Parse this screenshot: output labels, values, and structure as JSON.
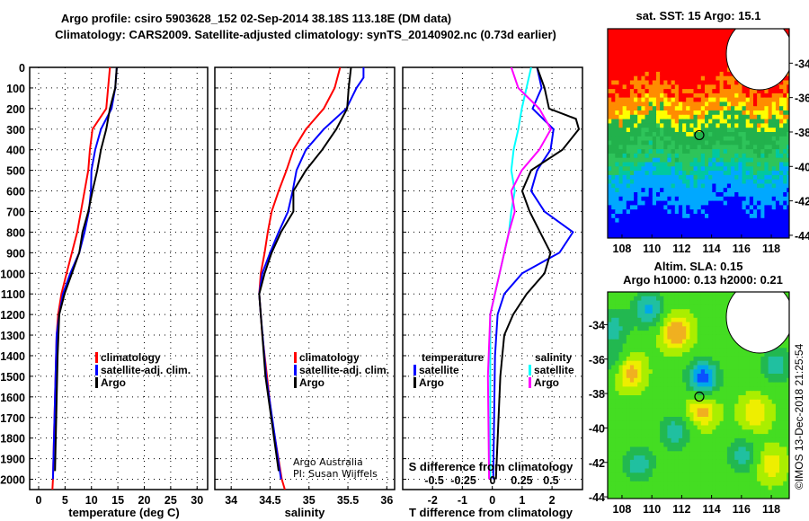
{
  "title_line1": "Argo profile: csiro 5903628_152 02-Sep-2014 38.18S 113.18E (DM data)",
  "title_line2": "Climatology: CARS2009. Satellite-adjusted climatology: synTS_20140902.nc (0.73d earlier)",
  "credit": [
    "Argo Australia",
    "PI: Susan Wijffels"
  ],
  "stamp": "©IMOS 13-Dec-2018 21:25:54",
  "colors": {
    "climatology": "#ff0000",
    "satellite": "#0000ff",
    "argo": "#000000",
    "s_satellite": "#00ffff",
    "s_argo": "#ff00ff"
  },
  "chart_data": [
    {
      "type": "line",
      "name": "temperature",
      "xlabel": "temperature (deg C)",
      "ylabel": "",
      "xlim": [
        -1.7,
        32
      ],
      "ylim": [
        2050,
        0
      ],
      "xticks": [
        0,
        5,
        10,
        15,
        20,
        25,
        30
      ],
      "yticks": [
        0,
        100,
        200,
        300,
        400,
        500,
        600,
        700,
        800,
        900,
        1000,
        1100,
        1200,
        1300,
        1400,
        1500,
        1600,
        1700,
        1800,
        1900,
        2000
      ],
      "grid": true,
      "legend": {
        "placement": "middle-center",
        "entries": [
          "climatology",
          "satellite-adj. clim.",
          "Argo"
        ]
      },
      "series": [
        {
          "name": "climatology",
          "color": "#ff0000",
          "depth": [
            0,
            200,
            300,
            400,
            500,
            600,
            700,
            800,
            900,
            1000,
            1100,
            1200,
            1300,
            1500,
            2000,
            2050
          ],
          "values": [
            13.5,
            12.8,
            10.2,
            9.7,
            9.4,
            8.7,
            8.0,
            7.3,
            6.3,
            5.3,
            4.3,
            3.7,
            3.4,
            3.2,
            2.7,
            2.6
          ]
        },
        {
          "name": "satellite-adj. clim.",
          "color": "#0000ff",
          "depth": [
            0,
            100,
            200,
            300,
            400,
            500,
            600,
            700,
            800,
            900,
            1000,
            1100,
            1200,
            1300,
            1500,
            2000
          ],
          "values": [
            14.8,
            14.5,
            13.8,
            11.8,
            10.7,
            10.0,
            9.9,
            9.5,
            8.7,
            7.7,
            6.0,
            4.6,
            3.9,
            3.4,
            3.2,
            2.7
          ]
        },
        {
          "name": "Argo",
          "color": "#000000",
          "depth": [
            0,
            100,
            200,
            300,
            400,
            500,
            600,
            700,
            800,
            900,
            1000,
            1100,
            1200,
            1400,
            1960
          ],
          "values": [
            14.8,
            14.5,
            13.5,
            12.8,
            11.8,
            11.1,
            10.2,
            9.4,
            8.3,
            7.7,
            6.3,
            4.9,
            3.9,
            3.6,
            3.1
          ]
        }
      ]
    },
    {
      "type": "line",
      "name": "salinity",
      "xlabel": "salinity",
      "xlim": [
        33.79,
        36.1
      ],
      "ylim": [
        2050,
        0
      ],
      "xticks": [
        34,
        34.5,
        35,
        35.5,
        36
      ],
      "grid": true,
      "legend": {
        "placement": "middle-right",
        "entries": [
          "climatology",
          "satellite-adj. clim.",
          "Argo"
        ]
      },
      "series": [
        {
          "name": "climatology",
          "color": "#ff0000",
          "depth": [
            0,
            100,
            200,
            300,
            400,
            500,
            600,
            700,
            800,
            900,
            1000,
            1100,
            1200,
            1300,
            1500,
            1700,
            2000,
            2050
          ],
          "values": [
            35.4,
            35.33,
            35.19,
            34.96,
            34.8,
            34.71,
            34.61,
            34.52,
            34.47,
            34.43,
            34.38,
            34.36,
            34.38,
            34.4,
            34.46,
            34.52,
            34.65,
            34.69
          ]
        },
        {
          "name": "satellite-adj. clim.",
          "color": "#0000ff",
          "depth": [
            0,
            50,
            100,
            200,
            300,
            400,
            500,
            600,
            700,
            800,
            900,
            1000,
            1100,
            1200,
            1500,
            2000
          ],
          "values": [
            35.7,
            35.7,
            35.61,
            35.48,
            35.19,
            34.96,
            34.84,
            34.79,
            34.73,
            34.61,
            34.5,
            34.4,
            34.36,
            34.38,
            34.45,
            34.64
          ]
        },
        {
          "name": "Argo",
          "color": "#000000",
          "depth": [
            0,
            100,
            200,
            300,
            400,
            500,
            600,
            700,
            800,
            900,
            1000,
            1100,
            1200,
            1500,
            1960
          ],
          "values": [
            35.54,
            35.51,
            35.49,
            35.35,
            35.17,
            34.96,
            34.8,
            34.8,
            34.64,
            34.52,
            34.43,
            34.36,
            34.38,
            34.44,
            34.61
          ]
        }
      ]
    },
    {
      "type": "line",
      "name": "differences",
      "xlabel": "T difference from climatology",
      "x2label": "S difference from climatology",
      "xlim": [
        -3,
        3.02
      ],
      "x2lim": [
        -0.77,
        0.77
      ],
      "ylim": [
        2050,
        0
      ],
      "xticks": [
        -2,
        -1,
        0,
        1,
        2
      ],
      "x2ticks": [
        "-0.5",
        "-0.25",
        "0",
        "0.25",
        "0.5"
      ],
      "grid": true,
      "legend": {
        "placement": "lower-middle",
        "temperature_title": "temperature",
        "salinity_title": "salinity",
        "entries": [
          "satellite",
          "Argo",
          "satellite",
          "Argo"
        ]
      },
      "series": [
        {
          "name": "T satellite",
          "axis": "T",
          "color": "#0000ff",
          "depth": [
            0,
            100,
            200,
            300,
            400,
            500,
            600,
            700,
            800,
            900,
            1000,
            1100,
            1200,
            1400,
            2000
          ],
          "values": [
            1.5,
            1.65,
            1.35,
            2.05,
            1.95,
            1.5,
            1.3,
            1.75,
            2.7,
            2.25,
            1.0,
            0.4,
            0.18,
            0.09,
            0.03
          ]
        },
        {
          "name": "T Argo",
          "axis": "T",
          "color": "#000000",
          "depth": [
            0,
            100,
            200,
            250,
            300,
            400,
            500,
            600,
            700,
            800,
            900,
            1000,
            1100,
            1200,
            1300,
            1500,
            2000
          ],
          "values": [
            1.5,
            1.75,
            1.9,
            2.8,
            2.9,
            2.35,
            1.3,
            1.0,
            1.25,
            1.6,
            1.95,
            1.75,
            1.15,
            0.7,
            0.4,
            0.27,
            0.12
          ]
        },
        {
          "name": "S satellite",
          "axis": "S",
          "color": "#00ffff",
          "depth": [
            0,
            100,
            200,
            300,
            400,
            500,
            600,
            700,
            800,
            1000,
            1200,
            1500,
            2000
          ],
          "values": [
            0.33,
            0.29,
            0.25,
            0.22,
            0.18,
            0.16,
            0.19,
            0.16,
            0.14,
            0.06,
            -0.02,
            -0.02,
            -0.02
          ]
        },
        {
          "name": "S Argo",
          "axis": "S",
          "color": "#ff00ff",
          "depth": [
            0,
            100,
            200,
            300,
            400,
            500,
            600,
            700,
            800,
            900,
            1000,
            1200,
            1500,
            2000
          ],
          "values": [
            0.16,
            0.22,
            0.4,
            0.5,
            0.4,
            0.25,
            0.16,
            0.19,
            0.14,
            0.1,
            0.06,
            -0.02,
            -0.04,
            -0.03
          ]
        }
      ]
    },
    {
      "type": "heatmap",
      "name": "sst-map",
      "title": "sat. SST: 15 Argo: 15.1",
      "xlim": [
        107.04,
        119.2
      ],
      "ylim": [
        -44.16,
        -32.0
      ],
      "xticks": [
        108,
        110,
        112,
        114,
        116,
        118
      ],
      "yticks": [
        -34,
        -36,
        -38,
        -40,
        -42,
        -44
      ],
      "argo_position": {
        "lon": 113.18,
        "lat": -38.18
      }
    },
    {
      "type": "heatmap",
      "name": "sla-map",
      "title": "Altim. SLA: 0.15",
      "subtitle": "Argo h1000: 0.13 h2000: 0.21",
      "xlim": [
        107.04,
        119.2
      ],
      "ylim": [
        -44.1,
        -32.1
      ],
      "xticks": [
        108,
        110,
        112,
        114,
        116,
        118
      ],
      "yticks": [
        -34,
        -36,
        -38,
        -40,
        -42,
        -44
      ],
      "argo_position": {
        "lon": 113.18,
        "lat": -38.18
      }
    }
  ]
}
